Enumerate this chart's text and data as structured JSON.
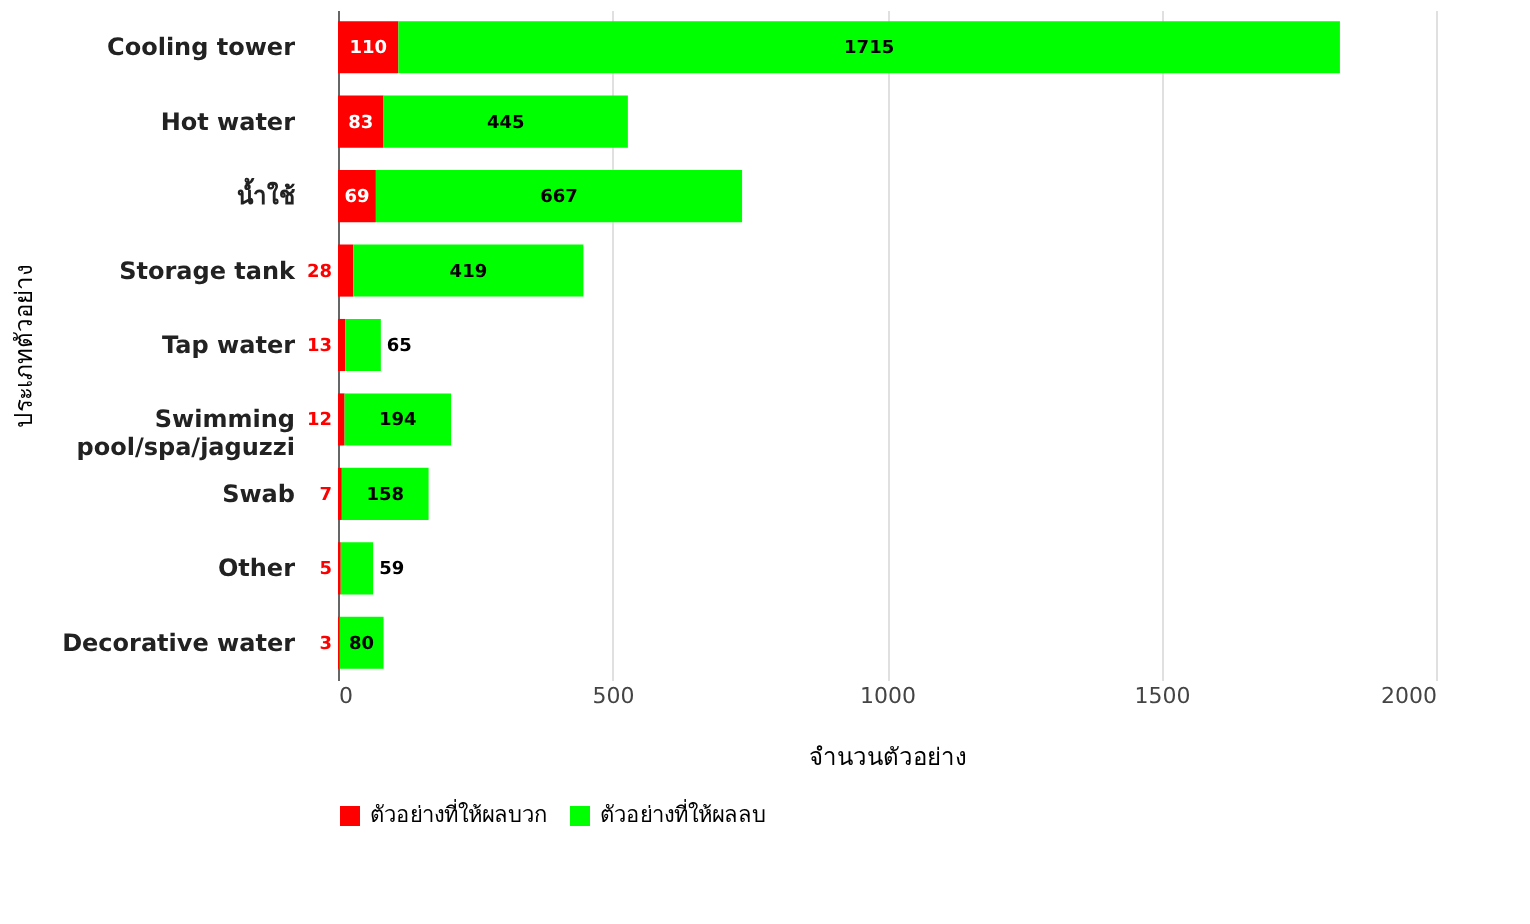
{
  "chart_data": {
    "type": "bar",
    "orientation": "horizontal",
    "stacked": true,
    "categories": [
      "Cooling tower",
      "Hot water",
      "น้ำใช้",
      "Storage tank",
      "Tap water",
      "Swimming\npool/spa/jaguzzi",
      "Swab",
      "Other",
      "Decorative water"
    ],
    "series": [
      {
        "name": "ตัวอย่างที่ให้ผลบวก",
        "color": "#ff0000",
        "values": [
          110,
          83,
          69,
          28,
          13,
          12,
          7,
          5,
          3
        ]
      },
      {
        "name": "ตัวอย่างที่ให้ผลลบ",
        "color": "#00ff00",
        "values": [
          1715,
          445,
          667,
          419,
          65,
          194,
          158,
          59,
          80
        ]
      }
    ],
    "xlabel": "จำนวนตัวอย่าง",
    "ylabel": "ประเภทตัวอย่าง",
    "xlim": [
      0,
      2000
    ],
    "xticks": [
      0,
      500,
      1000,
      1500,
      2000
    ],
    "grid": "x",
    "legend": "bottom",
    "data_labels": true
  }
}
